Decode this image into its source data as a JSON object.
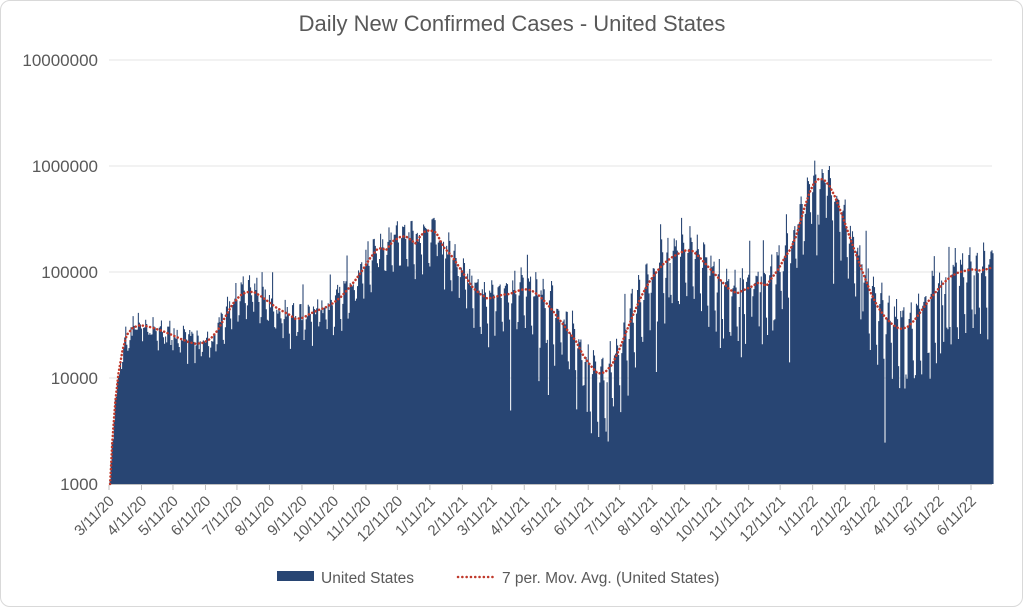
{
  "window": {
    "background": "#FFFFFF",
    "border_color": "#D9D9D9"
  },
  "chart_data": {
    "type": "bar",
    "title": "Daily New Confirmed Cases - United States",
    "title_color": "#595959",
    "legend": {
      "position": "bottom",
      "entries": [
        "United States",
        "7 per. Mov. Avg. (United States)"
      ]
    },
    "y_axis": {
      "scale": "log",
      "range": [
        1000,
        10000000
      ],
      "tick_labels": [
        "10000000",
        "1000000",
        "100000",
        "10000",
        "1000"
      ],
      "tick_values": [
        10000000,
        1000000,
        100000,
        10000,
        1000
      ],
      "grid": true,
      "gridline_color": "#E4E4E4",
      "axis_line_color": "#BFBFBF",
      "label_color": "#595959"
    },
    "x_axis": {
      "tick_labels": [
        "3/11/20",
        "4/11/20",
        "5/11/20",
        "6/11/20",
        "7/11/20",
        "8/11/20",
        "9/11/20",
        "10/11/20",
        "11/11/20",
        "12/11/20",
        "1/11/21",
        "2/11/21",
        "3/11/21",
        "4/11/21",
        "5/11/21",
        "6/11/21",
        "7/11/21",
        "8/11/21",
        "9/11/21",
        "10/11/21",
        "11/11/21",
        "12/11/21",
        "1/11/22",
        "2/11/22",
        "3/11/22",
        "4/11/22",
        "5/11/22",
        "6/11/22"
      ],
      "tick_day_offsets": [
        0,
        31,
        61,
        92,
        122,
        153,
        184,
        214,
        245,
        275,
        306,
        337,
        365,
        396,
        426,
        457,
        487,
        518,
        549,
        579,
        610,
        640,
        671,
        702,
        730,
        761,
        791,
        822
      ],
      "days_shown": 844,
      "label_rotation_deg": -45,
      "label_color": "#595959"
    },
    "series": [
      {
        "name": "United States",
        "type": "bar",
        "color": "#284573"
      },
      {
        "name": "7 per. Mov. Avg. (United States)",
        "type": "dotted_line",
        "color": "#C0392B",
        "keypoints_day_value": [
          [
            1,
            950
          ],
          [
            3,
            2400
          ],
          [
            6,
            6000
          ],
          [
            9,
            11000
          ],
          [
            13,
            18500
          ],
          [
            17,
            25500
          ],
          [
            23,
            30000
          ],
          [
            30,
            31500
          ],
          [
            38,
            30500
          ],
          [
            45,
            29000
          ],
          [
            52,
            27500
          ],
          [
            60,
            25500
          ],
          [
            68,
            23500
          ],
          [
            76,
            21800
          ],
          [
            83,
            21000
          ],
          [
            90,
            21500
          ],
          [
            97,
            23500
          ],
          [
            104,
            28500
          ],
          [
            111,
            38000
          ],
          [
            118,
            50000
          ],
          [
            125,
            60000
          ],
          [
            131,
            64500
          ],
          [
            138,
            65000
          ],
          [
            145,
            59000
          ],
          [
            152,
            52500
          ],
          [
            159,
            46500
          ],
          [
            166,
            42500
          ],
          [
            172,
            39500
          ],
          [
            178,
            36000
          ],
          [
            185,
            37000
          ],
          [
            192,
            40500
          ],
          [
            199,
            43500
          ],
          [
            206,
            46000
          ],
          [
            214,
            51000
          ],
          [
            221,
            58000
          ],
          [
            228,
            69000
          ],
          [
            235,
            84000
          ],
          [
            242,
            105000
          ],
          [
            249,
            135000
          ],
          [
            256,
            165000
          ],
          [
            260,
            168000
          ],
          [
            264,
            160000
          ],
          [
            271,
            196000
          ],
          [
            278,
            215000
          ],
          [
            283,
            217000
          ],
          [
            288,
            201000
          ],
          [
            292,
            185000
          ],
          [
            296,
            212000
          ],
          [
            301,
            240000
          ],
          [
            306,
            248000
          ],
          [
            312,
            236000
          ],
          [
            319,
            172000
          ],
          [
            326,
            145000
          ],
          [
            333,
            115000
          ],
          [
            340,
            90000
          ],
          [
            347,
            71000
          ],
          [
            354,
            62000
          ],
          [
            361,
            56000
          ],
          [
            368,
            58000
          ],
          [
            375,
            61000
          ],
          [
            382,
            62000
          ],
          [
            389,
            66000
          ],
          [
            396,
            69000
          ],
          [
            403,
            67000
          ],
          [
            410,
            60000
          ],
          [
            417,
            51000
          ],
          [
            424,
            42000
          ],
          [
            431,
            34000
          ],
          [
            438,
            27500
          ],
          [
            445,
            22500
          ],
          [
            452,
            16500
          ],
          [
            459,
            13200
          ],
          [
            466,
            11000
          ],
          [
            473,
            11300
          ],
          [
            480,
            13500
          ],
          [
            487,
            19000
          ],
          [
            494,
            28500
          ],
          [
            501,
            42000
          ],
          [
            508,
            60000
          ],
          [
            515,
            80000
          ],
          [
            522,
            100000
          ],
          [
            529,
            120000
          ],
          [
            536,
            136000
          ],
          [
            543,
            149000
          ],
          [
            550,
            160000
          ],
          [
            557,
            157000
          ],
          [
            564,
            135000
          ],
          [
            571,
            113000
          ],
          [
            578,
            95000
          ],
          [
            585,
            80000
          ],
          [
            592,
            68000
          ],
          [
            599,
            63000
          ],
          [
            606,
            68000
          ],
          [
            613,
            73000
          ],
          [
            620,
            80000
          ],
          [
            627,
            74000
          ],
          [
            631,
            85000
          ],
          [
            638,
            105000
          ],
          [
            645,
            140000
          ],
          [
            650,
            165000
          ],
          [
            655,
            215000
          ],
          [
            659,
            290000
          ],
          [
            663,
            400000
          ],
          [
            668,
            560000
          ],
          [
            672,
            680000
          ],
          [
            677,
            760000
          ],
          [
            682,
            740000
          ],
          [
            687,
            650000
          ],
          [
            692,
            520000
          ],
          [
            697,
            390000
          ],
          [
            702,
            285000
          ],
          [
            707,
            205000
          ],
          [
            712,
            150000
          ],
          [
            719,
            98000
          ],
          [
            726,
            65000
          ],
          [
            733,
            47000
          ],
          [
            740,
            37500
          ],
          [
            747,
            32000
          ],
          [
            754,
            29000
          ],
          [
            761,
            30000
          ],
          [
            768,
            35000
          ],
          [
            775,
            43500
          ],
          [
            782,
            54000
          ],
          [
            789,
            66000
          ],
          [
            796,
            79000
          ],
          [
            803,
            91000
          ],
          [
            810,
            99000
          ],
          [
            817,
            103000
          ],
          [
            824,
            106000
          ],
          [
            831,
            103000
          ],
          [
            838,
            107000
          ],
          [
            843,
            111000
          ]
        ]
      }
    ],
    "bar_generation": {
      "note": "daily bars reconstructed from moving average with weekly reporting pattern",
      "weekday_factors_wed_first": [
        1.18,
        1.28,
        1.33,
        1.05,
        0.52,
        0.4,
        0.92
      ],
      "amplitude_eras": [
        [
          110,
          0.28
        ],
        [
          210,
          0.55
        ],
        [
          350,
          0.72
        ],
        [
          440,
          1.0
        ],
        [
          560,
          1.35
        ],
        [
          655,
          1.15
        ],
        [
          725,
          1.05
        ],
        [
          900,
          1.45
        ]
      ],
      "noise_log_width": 0.5,
      "spike_chance": 0.055,
      "spike_min_day": 140,
      "deep_drop_chance": 0.055,
      "deep_drop_min_day": 380,
      "max_bar": 1420000,
      "min_plotted": 1000,
      "seed": 1337
    }
  }
}
